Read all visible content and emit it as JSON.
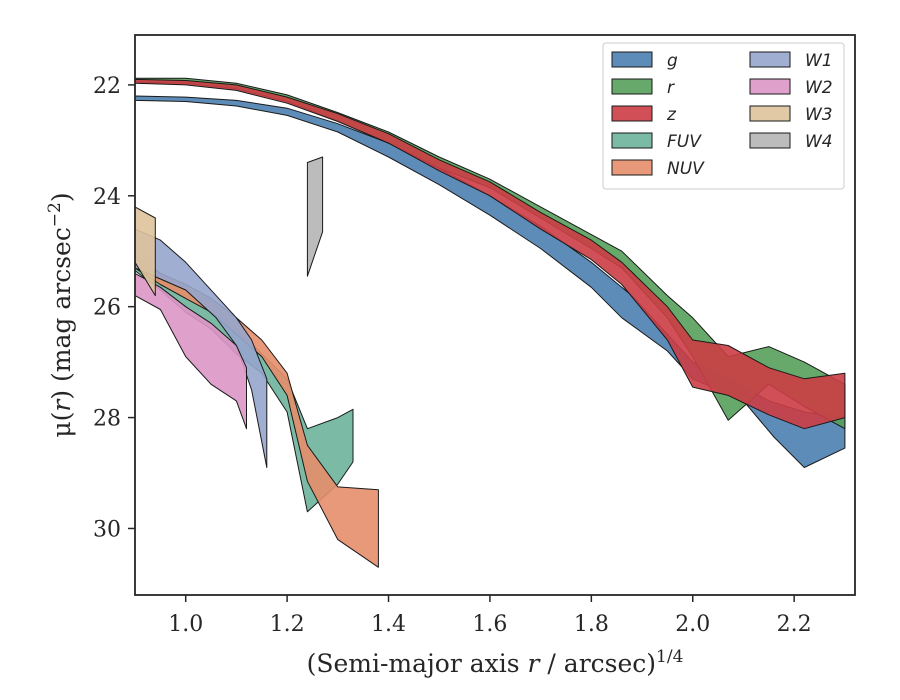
{
  "chart_data": {
    "type": "area",
    "xlabel_main": "(Semi-major axis ",
    "xlabel_var": "r",
    "xlabel_unit": " / arcsec)",
    "xlabel_exp": "1/4",
    "ylabel_main": "μ(",
    "ylabel_var": "r",
    "ylabel_unit": ") (mag arcsec",
    "ylabel_exp": "−2",
    "ylabel_close": ")",
    "xlim": [
      0.9,
      2.32
    ],
    "ylim": [
      31.2,
      21.1
    ],
    "y_inverted": true,
    "xticks": [
      1.0,
      1.2,
      1.4,
      1.6,
      1.8,
      2.0,
      2.2
    ],
    "xtick_labels": [
      "1.0",
      "1.2",
      "1.4",
      "1.6",
      "1.8",
      "2.0",
      "2.2"
    ],
    "yticks": [
      22,
      24,
      26,
      28,
      30
    ],
    "ytick_labels": [
      "22",
      "24",
      "26",
      "28",
      "30"
    ],
    "grid": false,
    "legend": {
      "position": "top-right",
      "columns": 2
    },
    "series": [
      {
        "name": "g",
        "color": "#4c7fb0",
        "upper": [
          [
            0.9,
            22.2
          ],
          [
            1.0,
            22.22
          ],
          [
            1.1,
            22.28
          ],
          [
            1.2,
            22.42
          ],
          [
            1.3,
            22.7
          ],
          [
            1.4,
            23.05
          ],
          [
            1.5,
            23.5
          ],
          [
            1.6,
            24.0
          ],
          [
            1.7,
            24.55
          ],
          [
            1.8,
            25.2
          ],
          [
            1.88,
            25.8
          ],
          [
            1.95,
            26.5
          ],
          [
            2.0,
            27.0
          ],
          [
            2.1,
            27.45
          ],
          [
            2.15,
            27.7
          ],
          [
            2.22,
            27.9
          ],
          [
            2.3,
            28.0
          ]
        ],
        "lower": [
          [
            0.9,
            22.28
          ],
          [
            1.0,
            22.3
          ],
          [
            1.1,
            22.38
          ],
          [
            1.2,
            22.55
          ],
          [
            1.3,
            22.85
          ],
          [
            1.4,
            23.3
          ],
          [
            1.5,
            23.8
          ],
          [
            1.6,
            24.35
          ],
          [
            1.7,
            24.95
          ],
          [
            1.8,
            25.65
          ],
          [
            1.86,
            26.2
          ],
          [
            1.95,
            26.8
          ],
          [
            2.0,
            27.3
          ],
          [
            2.1,
            27.7
          ],
          [
            2.16,
            28.35
          ],
          [
            2.22,
            28.9
          ],
          [
            2.3,
            28.55
          ]
        ]
      },
      {
        "name": "r",
        "color": "#55a05a",
        "upper": [
          [
            0.9,
            21.88
          ],
          [
            1.0,
            21.88
          ],
          [
            1.1,
            21.97
          ],
          [
            1.2,
            22.18
          ],
          [
            1.3,
            22.5
          ],
          [
            1.4,
            22.85
          ],
          [
            1.5,
            23.3
          ],
          [
            1.6,
            23.7
          ],
          [
            1.7,
            24.2
          ],
          [
            1.8,
            24.7
          ],
          [
            1.86,
            25.0
          ],
          [
            1.95,
            25.8
          ],
          [
            2.0,
            26.2
          ],
          [
            2.07,
            26.9
          ],
          [
            2.15,
            26.72
          ],
          [
            2.22,
            27.0
          ],
          [
            2.3,
            27.4
          ]
        ],
        "lower": [
          [
            0.9,
            21.95
          ],
          [
            1.0,
            21.97
          ],
          [
            1.1,
            22.07
          ],
          [
            1.2,
            22.3
          ],
          [
            1.3,
            22.65
          ],
          [
            1.4,
            23.05
          ],
          [
            1.5,
            23.5
          ],
          [
            1.6,
            23.85
          ],
          [
            1.7,
            24.4
          ],
          [
            1.8,
            24.95
          ],
          [
            1.86,
            25.3
          ],
          [
            1.95,
            26.2
          ],
          [
            2.0,
            26.9
          ],
          [
            2.07,
            28.05
          ],
          [
            2.15,
            27.4
          ],
          [
            2.22,
            27.8
          ],
          [
            2.3,
            28.2
          ]
        ]
      },
      {
        "name": "z",
        "color": "#cc3d45",
        "upper": [
          [
            0.9,
            21.9
          ],
          [
            1.0,
            21.92
          ],
          [
            1.1,
            22.0
          ],
          [
            1.2,
            22.22
          ],
          [
            1.3,
            22.52
          ],
          [
            1.4,
            22.88
          ],
          [
            1.5,
            23.35
          ],
          [
            1.6,
            23.75
          ],
          [
            1.7,
            24.3
          ],
          [
            1.8,
            24.8
          ],
          [
            1.86,
            25.2
          ],
          [
            1.95,
            26.0
          ],
          [
            2.0,
            26.6
          ],
          [
            2.07,
            26.7
          ],
          [
            2.15,
            27.1
          ],
          [
            2.22,
            27.3
          ],
          [
            2.3,
            27.2
          ]
        ],
        "lower": [
          [
            0.9,
            21.97
          ],
          [
            1.0,
            22.0
          ],
          [
            1.1,
            22.1
          ],
          [
            1.2,
            22.33
          ],
          [
            1.3,
            22.66
          ],
          [
            1.4,
            23.05
          ],
          [
            1.5,
            23.55
          ],
          [
            1.6,
            24.0
          ],
          [
            1.7,
            24.6
          ],
          [
            1.8,
            25.15
          ],
          [
            1.86,
            25.6
          ],
          [
            1.95,
            26.6
          ],
          [
            2.0,
            27.45
          ],
          [
            2.07,
            27.6
          ],
          [
            2.15,
            27.95
          ],
          [
            2.22,
            28.2
          ],
          [
            2.3,
            28.0
          ]
        ]
      },
      {
        "name": "FUV",
        "color": "#6db49b",
        "upper": [
          [
            0.9,
            25.05
          ],
          [
            0.95,
            25.4
          ],
          [
            1.0,
            25.65
          ],
          [
            1.05,
            25.9
          ],
          [
            1.1,
            26.4
          ],
          [
            1.15,
            26.85
          ],
          [
            1.2,
            27.3
          ],
          [
            1.24,
            28.2
          ],
          [
            1.3,
            28.0
          ],
          [
            1.33,
            27.85
          ]
        ],
        "lower": [
          [
            0.9,
            25.35
          ],
          [
            0.95,
            25.7
          ],
          [
            1.0,
            26.1
          ],
          [
            1.05,
            26.4
          ],
          [
            1.1,
            26.85
          ],
          [
            1.15,
            27.2
          ],
          [
            1.2,
            27.9
          ],
          [
            1.24,
            29.7
          ],
          [
            1.3,
            29.2
          ],
          [
            1.33,
            28.8
          ]
        ]
      },
      {
        "name": "NUV",
        "color": "#e58e6b",
        "upper": [
          [
            0.9,
            25.1
          ],
          [
            0.95,
            25.4
          ],
          [
            1.0,
            25.6
          ],
          [
            1.05,
            25.85
          ],
          [
            1.1,
            26.2
          ],
          [
            1.15,
            26.6
          ],
          [
            1.2,
            27.2
          ],
          [
            1.24,
            28.5
          ],
          [
            1.3,
            29.25
          ],
          [
            1.38,
            29.3
          ]
        ],
        "lower": [
          [
            0.9,
            25.3
          ],
          [
            0.95,
            25.6
          ],
          [
            1.0,
            25.85
          ],
          [
            1.05,
            26.1
          ],
          [
            1.1,
            26.5
          ],
          [
            1.15,
            26.9
          ],
          [
            1.2,
            27.6
          ],
          [
            1.24,
            29.15
          ],
          [
            1.3,
            30.2
          ],
          [
            1.38,
            30.7
          ]
        ]
      },
      {
        "name": "W1",
        "color": "#96a6cc",
        "upper": [
          [
            0.9,
            24.6
          ],
          [
            0.95,
            24.8
          ],
          [
            1.0,
            25.2
          ],
          [
            1.06,
            25.8
          ],
          [
            1.1,
            26.2
          ],
          [
            1.13,
            26.6
          ],
          [
            1.16,
            27.3
          ]
        ],
        "lower": [
          [
            0.9,
            25.3
          ],
          [
            0.95,
            25.5
          ],
          [
            1.0,
            25.7
          ],
          [
            1.06,
            26.2
          ],
          [
            1.1,
            26.7
          ],
          [
            1.13,
            27.5
          ],
          [
            1.16,
            28.9
          ]
        ]
      },
      {
        "name": "W2",
        "color": "#dc96c6",
        "upper": [
          [
            0.9,
            25.4
          ],
          [
            0.95,
            25.65
          ],
          [
            1.0,
            26.0
          ],
          [
            1.05,
            26.3
          ],
          [
            1.1,
            26.7
          ],
          [
            1.12,
            27.1
          ]
        ],
        "lower": [
          [
            0.9,
            25.8
          ],
          [
            0.95,
            26.05
          ],
          [
            1.0,
            26.9
          ],
          [
            1.05,
            27.4
          ],
          [
            1.1,
            27.7
          ],
          [
            1.12,
            28.2
          ]
        ]
      },
      {
        "name": "W3",
        "color": "#dec39c",
        "upper": [
          [
            0.9,
            24.2
          ],
          [
            0.94,
            24.4
          ]
        ],
        "lower": [
          [
            0.9,
            25.2
          ],
          [
            0.94,
            25.8
          ]
        ]
      },
      {
        "name": "W4",
        "color": "#b5b5b5",
        "upper": [
          [
            1.24,
            23.4
          ],
          [
            1.27,
            23.3
          ]
        ],
        "lower": [
          [
            1.24,
            25.45
          ],
          [
            1.27,
            24.65
          ]
        ]
      }
    ]
  }
}
